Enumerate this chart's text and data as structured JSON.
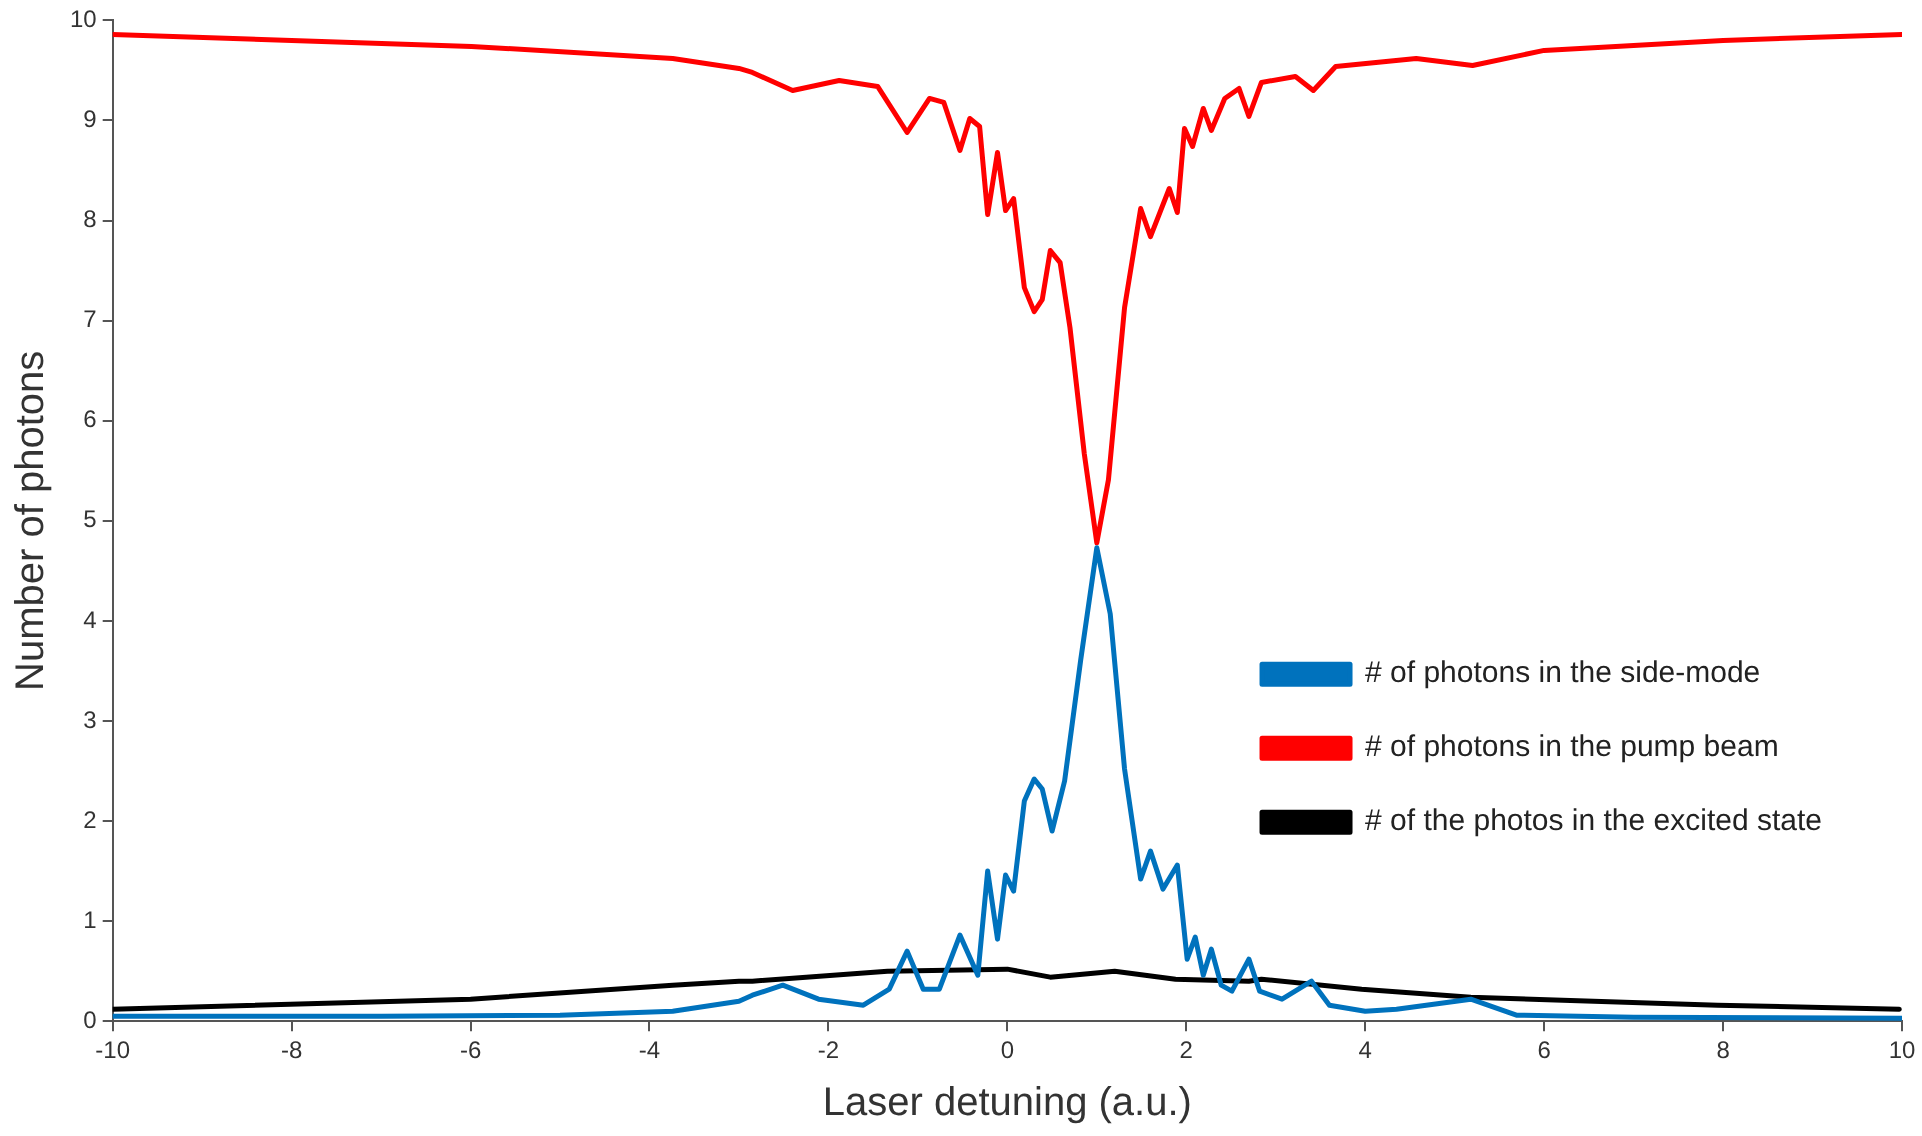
{
  "chart_data": {
    "type": "line",
    "xlabel": "Laser detuning (a.u.)",
    "ylabel": "Number of photons",
    "xlim": [
      -10,
      10
    ],
    "xticks": [
      -10,
      -8,
      -6,
      -4,
      -2,
      0,
      2,
      4,
      6,
      8,
      10
    ],
    "ylim": [
      0,
      10
    ],
    "yticks": [
      0,
      1,
      2,
      3,
      4,
      5,
      6,
      7,
      8,
      9,
      10
    ],
    "grid": false,
    "legend": "right",
    "marker": "none",
    "line_style": "solid",
    "series": [
      {
        "name": "# of photons in the side-mode",
        "color": "#0072bd",
        "x": [
          -10,
          -7,
          -5,
          -3.74,
          -3,
          -2.85,
          -2.51,
          -2.11,
          -1.61,
          -1.32,
          -1.12,
          -0.94,
          -0.76,
          -0.53,
          -0.33,
          -0.22,
          -0.11,
          -0.02,
          0.07,
          0.19,
          0.3,
          0.39,
          0.5,
          0.64,
          0.82,
          1,
          1.15,
          1.31,
          1.49,
          1.6,
          1.74,
          1.9,
          2.01,
          2.1,
          2.19,
          2.28,
          2.39,
          2.51,
          2.7,
          2.82,
          3.07,
          3.4,
          3.6,
          4,
          4.35,
          5.18,
          5.69,
          7,
          10
        ],
        "values": [
          0.05,
          0.05,
          0.06,
          0.1,
          0.2,
          0.26,
          0.36,
          0.22,
          0.16,
          0.32,
          0.7,
          0.32,
          0.32,
          0.86,
          0.46,
          1.5,
          0.82,
          1.46,
          1.3,
          2.2,
          2.42,
          2.32,
          1.9,
          2.4,
          3.61,
          4.73,
          4.07,
          2.52,
          1.42,
          1.7,
          1.32,
          1.56,
          0.62,
          0.84,
          0.46,
          0.72,
          0.36,
          0.3,
          0.62,
          0.3,
          0.22,
          0.4,
          0.16,
          0.1,
          0.12,
          0.22,
          0.06,
          0.04,
          0.03
        ]
      },
      {
        "name": "# of photons in the pump beam",
        "color": "#ff0000",
        "x": [
          -10,
          -8,
          -5.99,
          -3.74,
          -3,
          -2.85,
          -2.4,
          -1.88,
          -1.45,
          -1.12,
          -0.87,
          -0.71,
          -0.53,
          -0.42,
          -0.31,
          -0.22,
          -0.11,
          -0.02,
          0.07,
          0.19,
          0.3,
          0.39,
          0.48,
          0.59,
          0.7,
          0.86,
          1,
          1.13,
          1.31,
          1.49,
          1.6,
          1.81,
          1.9,
          1.98,
          2.07,
          2.19,
          2.28,
          2.43,
          2.59,
          2.7,
          2.84,
          3.22,
          3.42,
          3.67,
          4.57,
          5.2,
          6,
          8,
          10
        ],
        "values": [
          9.86,
          9.8,
          9.74,
          9.62,
          9.52,
          9.48,
          9.3,
          9.4,
          9.34,
          8.88,
          9.22,
          9.18,
          8.7,
          9.02,
          8.94,
          8.06,
          8.68,
          8.1,
          8.22,
          7.33,
          7.09,
          7.21,
          7.7,
          7.58,
          6.93,
          5.67,
          4.78,
          5.41,
          7.13,
          8.12,
          7.84,
          8.32,
          8.08,
          8.92,
          8.74,
          9.12,
          8.9,
          9.22,
          9.32,
          9.04,
          9.38,
          9.44,
          9.3,
          9.54,
          9.62,
          9.55,
          9.7,
          9.8,
          9.86
        ]
      },
      {
        "name": "# of the photos in the excited state",
        "color": "#000000",
        "x": [
          -10,
          -6,
          -3.74,
          -3,
          -2.85,
          -1.34,
          0,
          0.48,
          1.2,
          1.88,
          2.7,
          2.84,
          3.96,
          5.18,
          7.94,
          9.97
        ],
        "values": [
          0.12,
          0.22,
          0.36,
          0.4,
          0.4,
          0.5,
          0.52,
          0.44,
          0.5,
          0.42,
          0.4,
          0.42,
          0.32,
          0.24,
          0.16,
          0.12
        ]
      }
    ]
  }
}
